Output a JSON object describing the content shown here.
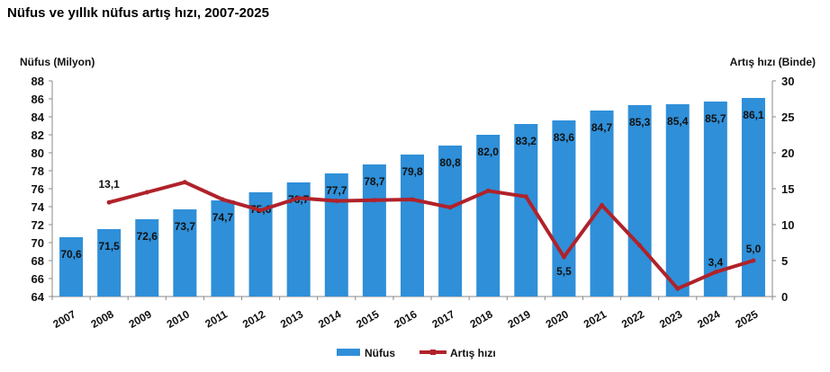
{
  "chart_data": {
    "type": "bar+line",
    "title": "Nüfus ve yıllık nüfus artış hızı, 2007-2025",
    "ylabel": "Nüfus (Milyon)",
    "y2label": "Artış hızı (Binde)",
    "ylim": [
      64,
      88
    ],
    "y_ticks": [
      64,
      66,
      68,
      70,
      72,
      74,
      76,
      78,
      80,
      82,
      84,
      86,
      88
    ],
    "y2lim": [
      0,
      30
    ],
    "y2_ticks": [
      0,
      5,
      10,
      15,
      20,
      25,
      30
    ],
    "categories": [
      "2007",
      "2008",
      "2009",
      "2010",
      "2011",
      "2012",
      "2013",
      "2014",
      "2015",
      "2016",
      "2017",
      "2018",
      "2019",
      "2020",
      "2021",
      "2022",
      "2023",
      "2024",
      "2025"
    ],
    "series": [
      {
        "name": "Nüfus",
        "type": "bar",
        "axis": "left",
        "color": "#2f8fd8",
        "values": [
          70.6,
          71.5,
          72.6,
          73.7,
          74.7,
          75.6,
          76.7,
          77.7,
          78.7,
          79.8,
          80.8,
          82.0,
          83.2,
          83.6,
          84.7,
          85.3,
          85.4,
          85.7,
          86.1
        ],
        "labels": [
          "70,6",
          "71,5",
          "72,6",
          "73,7",
          "74,7",
          "75,6",
          "76,7",
          "77,7",
          "78,7",
          "79,8",
          "80,8",
          "82,0",
          "83,2",
          "83,6",
          "84,7",
          "85,3",
          "85,4",
          "85,7",
          "86,1"
        ]
      },
      {
        "name": "Artış hızı",
        "type": "line",
        "axis": "right",
        "color": "#b0222a",
        "values": [
          null,
          13.1,
          14.5,
          15.9,
          13.5,
          12.0,
          13.7,
          13.3,
          13.4,
          13.5,
          12.4,
          14.7,
          13.9,
          5.5,
          12.7,
          7.1,
          1.1,
          3.4,
          5.0
        ],
        "point_labels": {
          "1": "13,1",
          "13": "5,5",
          "17": "3,4",
          "18": "5,0"
        }
      }
    ],
    "grid": false,
    "legend": "bottom"
  }
}
